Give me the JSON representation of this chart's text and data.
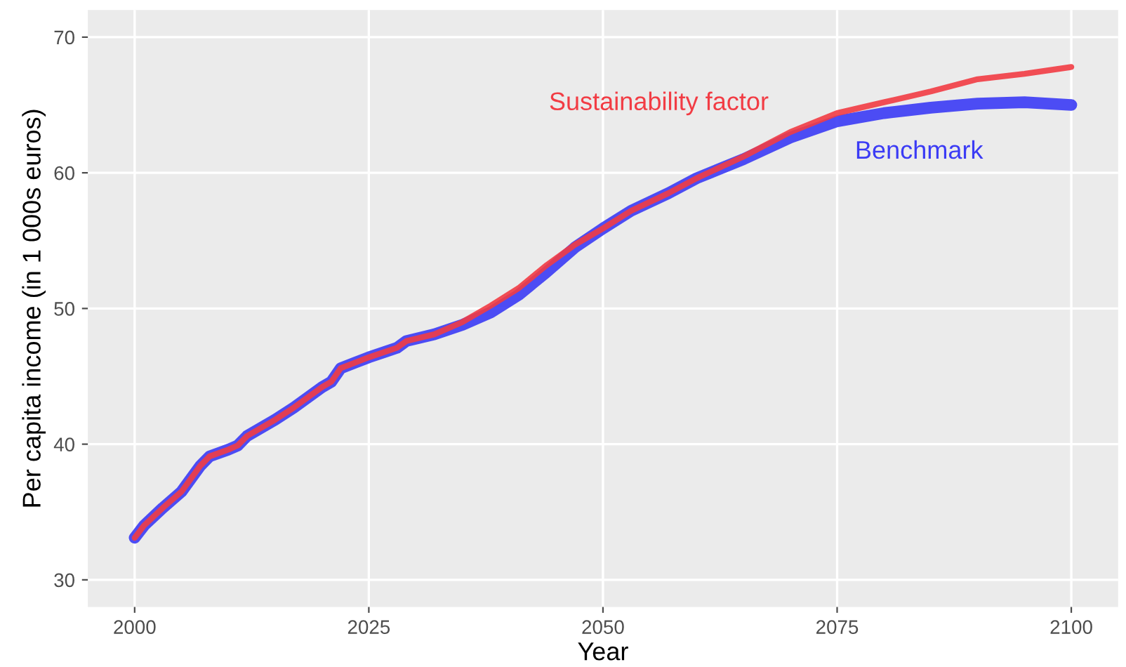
{
  "chart_data": {
    "type": "line",
    "xlabel": "Year",
    "ylabel": "Per capita income (in 1 000s euros)",
    "xlim": [
      1995,
      2105
    ],
    "ylim": [
      28,
      72
    ],
    "xticks": [
      2000,
      2025,
      2050,
      2075,
      2100
    ],
    "yticks": [
      30,
      40,
      50,
      60,
      70
    ],
    "grid": true,
    "legend": false,
    "line_style": "solid",
    "marker": "none",
    "x": [
      2000,
      2001,
      2003,
      2005,
      2007,
      2008,
      2010,
      2011,
      2012,
      2015,
      2017,
      2020,
      2021,
      2022,
      2025,
      2028,
      2029,
      2032,
      2035,
      2038,
      2041,
      2044,
      2047,
      2050,
      2053,
      2057,
      2060,
      2065,
      2070,
      2075,
      2080,
      2085,
      2090,
      2095,
      2100
    ],
    "series": [
      {
        "name": "Benchmark",
        "color": "#3b3bf5",
        "values": [
          33.1,
          34.0,
          35.3,
          36.5,
          38.4,
          39.1,
          39.6,
          39.9,
          40.6,
          41.8,
          42.7,
          44.2,
          44.6,
          45.6,
          46.4,
          47.1,
          47.6,
          48.1,
          48.8,
          49.7,
          51.0,
          52.7,
          54.5,
          55.9,
          57.2,
          58.5,
          59.6,
          61.0,
          62.6,
          63.8,
          64.4,
          64.8,
          65.1,
          65.2,
          65.0
        ]
      },
      {
        "name": "Sustainability factor",
        "color": "#f23c44",
        "values": [
          33.1,
          34.0,
          35.3,
          36.5,
          38.4,
          39.1,
          39.6,
          39.9,
          40.6,
          41.8,
          42.7,
          44.2,
          44.6,
          45.6,
          46.4,
          47.1,
          47.6,
          48.1,
          49.0,
          50.2,
          51.5,
          53.2,
          54.7,
          55.9,
          57.2,
          58.5,
          59.6,
          61.2,
          63.0,
          64.4,
          65.2,
          66.0,
          66.9,
          67.3,
          67.8
        ]
      }
    ]
  }
}
